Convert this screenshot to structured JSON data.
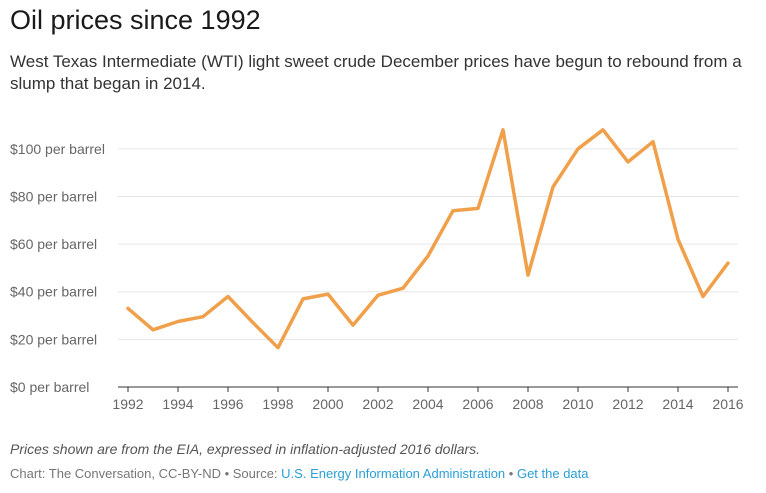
{
  "header": {
    "title": "Oil prices since 1992",
    "subtitle": "West Texas Intermediate (WTI) light sweet crude December prices have begun to rebound from a slump that began in 2014."
  },
  "footer": {
    "note": "Prices shown are from the EIA, expressed in inflation-adjusted 2016 dollars.",
    "credit_prefix": "Chart: The Conversation, CC-BY-ND • Source: ",
    "source_link": "U.S. Energy Information Administration",
    "separator": " • ",
    "data_link": "Get the data"
  },
  "colors": {
    "line": "#f0a04b",
    "grid": "#e6e6e6",
    "axis": "#333333",
    "link": "#2a9fd6"
  },
  "chart_data": {
    "type": "line",
    "title": "Oil prices since 1992",
    "xlabel": "",
    "ylabel": "",
    "x": [
      1992,
      1993,
      1994,
      1995,
      1996,
      1997,
      1998,
      1999,
      2000,
      2001,
      2002,
      2003,
      2004,
      2005,
      2006,
      2007,
      2008,
      2009,
      2010,
      2011,
      2012,
      2013,
      2014,
      2015,
      2016
    ],
    "series": [
      {
        "values": [
          33,
          24,
          27.5,
          29.5,
          38,
          27,
          16.5,
          37,
          39,
          26,
          38.5,
          41.5,
          55,
          74,
          75,
          108,
          47,
          84,
          100,
          108,
          94.5,
          103,
          62,
          38,
          52
        ]
      }
    ],
    "xlim": [
      1992,
      2016
    ],
    "ylim": [
      0,
      110
    ],
    "x_ticks": [
      1992,
      1994,
      1996,
      1998,
      2000,
      2002,
      2004,
      2006,
      2008,
      2010,
      2012,
      2014,
      2016
    ],
    "y_ticks": [
      {
        "value": 0,
        "label": "$0 per barrel"
      },
      {
        "value": 20,
        "label": "$20 per barrel"
      },
      {
        "value": 40,
        "label": "$40 per barrel"
      },
      {
        "value": 60,
        "label": "$60 per barrel"
      },
      {
        "value": 80,
        "label": "$80 per barrel"
      },
      {
        "value": 100,
        "label": "$100 per barrel"
      }
    ],
    "grid": true,
    "legend": "none"
  }
}
